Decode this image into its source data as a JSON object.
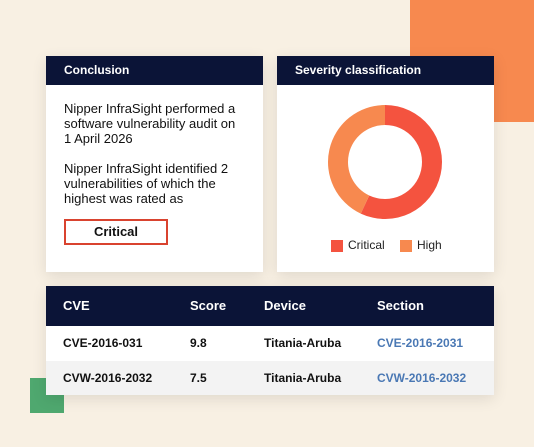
{
  "conclusion": {
    "title": "Conclusion",
    "paragraphs": [
      "Nipper InfraSight performed a software vulnerability audit on 1 April 2026",
      "Nipper InfraSight identified 2 vulnerabilities of which the highest was rated as"
    ],
    "badge": "Critical"
  },
  "chart_data": {
    "type": "pie",
    "title": "Severity classification",
    "donut": true,
    "categories": [
      "Critical",
      "High"
    ],
    "values": [
      57,
      43
    ],
    "colors": [
      "#f4533f",
      "#f7894f"
    ]
  },
  "table": {
    "headers": [
      "CVE",
      "Score",
      "Device",
      "Section"
    ],
    "rows": [
      [
        "CVE-2016-031",
        "9.8",
        "Titania-Aruba",
        "CVE-2016-2031"
      ],
      [
        "CVW-2016-2032",
        "7.5",
        "Titania-Aruba",
        "CVW-2016-2032"
      ]
    ]
  }
}
